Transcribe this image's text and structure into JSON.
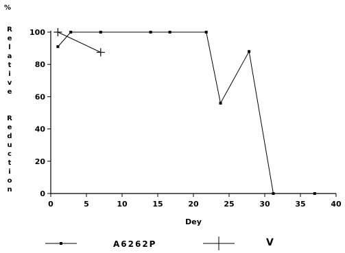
{
  "chart_data": {
    "type": "line",
    "ylabel_unit": "%",
    "ylabel": "Relative Reduction",
    "xlabel": "Dey",
    "xlim": [
      0,
      40
    ],
    "ylim": [
      0,
      100
    ],
    "xticks": [
      0,
      5,
      10,
      15,
      20,
      25,
      30,
      35,
      40
    ],
    "yticks": [
      0,
      20,
      40,
      60,
      80,
      100
    ],
    "grid": false,
    "legend_placement": "bottom",
    "series": [
      {
        "name": "A6262P",
        "marker": "square",
        "color": "#000000",
        "points": [
          {
            "x": 1,
            "y": 91
          },
          {
            "x": 2.8,
            "y": 100
          },
          {
            "x": 7,
            "y": 100
          },
          {
            "x": 14,
            "y": 100
          },
          {
            "x": 16.7,
            "y": 100
          },
          {
            "x": 21.8,
            "y": 100
          },
          {
            "x": 23.8,
            "y": 56
          },
          {
            "x": 27.8,
            "y": 88
          },
          {
            "x": 31.2,
            "y": 0
          },
          {
            "x": 37,
            "y": 0
          }
        ],
        "connected_through": 9
      },
      {
        "name": "V",
        "marker": "plus",
        "color": "#000000",
        "points": [
          {
            "x": 1,
            "y": 100
          },
          {
            "x": 7,
            "y": 87.5
          }
        ],
        "connected_through": 2
      }
    ]
  }
}
